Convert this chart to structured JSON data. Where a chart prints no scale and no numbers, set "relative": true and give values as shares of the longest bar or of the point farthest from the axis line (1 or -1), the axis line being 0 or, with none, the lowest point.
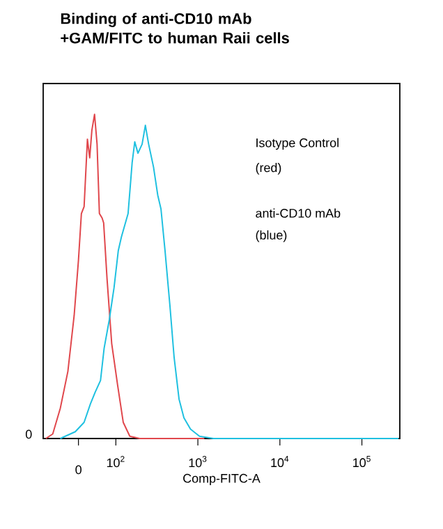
{
  "chart_data": {
    "type": "line",
    "title": "Binding of anti-CD10 mAb +GAM/FITC to human Raii cells",
    "xlabel": "Comp-FITC-A",
    "relative": true,
    "log": "x",
    "annotations": [
      "Isotype Control",
      "(red)",
      "anti-CD10 mAb",
      "(blue)",
      "0",
      "0"
    ],
    "xlim": [
      13,
      290000
    ],
    "xticks": [
      {
        "value": 35,
        "label": null
      },
      {
        "value": 100,
        "label": "10$^{2}$"
      },
      {
        "value": 1000,
        "label": "10$^{3}$"
      },
      {
        "value": 10000,
        "label": "10$^{4}$"
      },
      {
        "value": 100000,
        "label": "10$^{5}$"
      }
    ],
    "series": [
      {
        "color": "#e0474c",
        "x": [
          14,
          17,
          21,
          26,
          31,
          35,
          38,
          41,
          45,
          48,
          51,
          55,
          59,
          63,
          68,
          71,
          78,
          89,
          105,
          123,
          148,
          195,
          1200
        ],
        "values": [
          0,
          0.014,
          0.093,
          0.207,
          0.379,
          0.55,
          0.694,
          0.715,
          0.923,
          0.866,
          0.951,
          1,
          0.908,
          0.694,
          0.68,
          0.665,
          0.494,
          0.293,
          0.165,
          0.05,
          0.007,
          0,
          0
        ]
      },
      {
        "color": "#1fc0e0",
        "x": [
          21,
          32,
          41,
          49,
          56,
          65,
          72,
          83,
          95,
          107,
          117,
          141,
          158,
          170,
          186,
          209,
          229,
          251,
          288,
          324,
          355,
          398,
          457,
          513,
          589,
          676,
          813,
          1047,
          1549,
          280000
        ],
        "values": [
          0,
          0.021,
          0.05,
          0.107,
          0.143,
          0.179,
          0.279,
          0.365,
          0.465,
          0.579,
          0.622,
          0.694,
          0.851,
          0.915,
          0.88,
          0.908,
          0.966,
          0.908,
          0.837,
          0.751,
          0.708,
          0.579,
          0.408,
          0.251,
          0.122,
          0.064,
          0.029,
          0.007,
          0,
          0
        ]
      }
    ]
  }
}
